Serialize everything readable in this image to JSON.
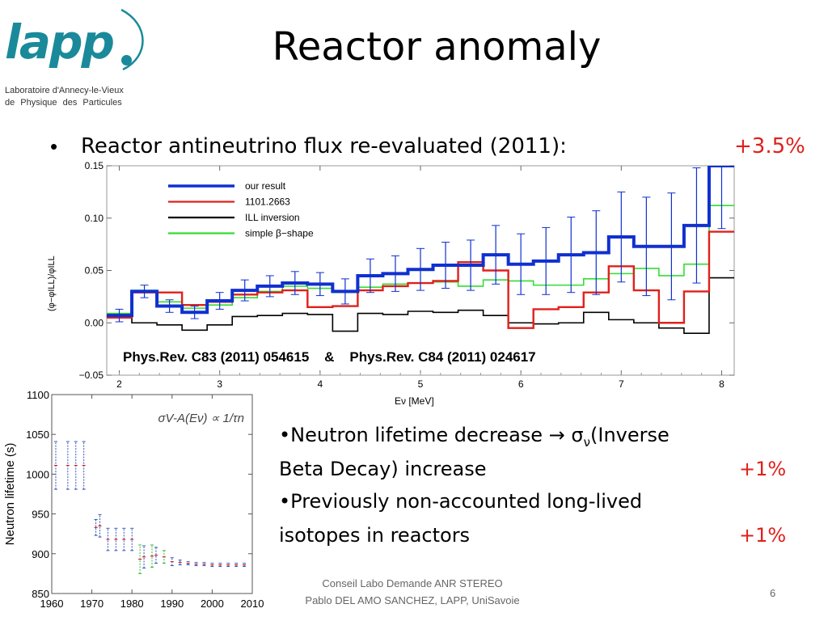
{
  "logo": {
    "word": "lapp",
    "line1": "Laboratoire d'Annecy-le-Vieux",
    "line2": "de Physique des Particules"
  },
  "title": "Reactor anomaly",
  "bullet1": {
    "marker": "•",
    "text": "Reactor antineutrino flux re-evaluated (2011):",
    "pct": "+3.5%"
  },
  "reference": "Phys.Rev. C83 (2011) 054615    &    Phys.Rev. C84 (2011) 024617",
  "bullet2": {
    "line1_pre": "•Neutron lifetime decrease → σ",
    "line1_sub": "ν",
    "line1_post": "(Inverse",
    "line2": "Beta Decay) increase",
    "pct": "+1%"
  },
  "bullet3": {
    "line1": "•Previously non-accounted long-lived",
    "line2": "isotopes in reactors",
    "pct": "+1%"
  },
  "footer": {
    "line1": "Conseil Labo Demande ANR STEREO",
    "line2": "Pablo DEL AMO SANCHEZ, LAPP, UniSavoie",
    "page": "6"
  },
  "colors": {
    "accent_red": "#e0201b",
    "logo_teal": "#1a8a9a",
    "our_result": "#1030d0",
    "ref_1101": "#e0201b",
    "ill": "#000000",
    "simple": "#33dd33"
  },
  "chart_data": [
    {
      "type": "line",
      "title": "",
      "xlabel": "Eν [MeV]",
      "ylabel": "(φ−φILL)/φILL",
      "xlim": [
        1.875,
        8.125
      ],
      "ylim": [
        -0.05,
        0.15
      ],
      "xticks": [
        "2",
        "3",
        "4",
        "5",
        "6",
        "7",
        "8"
      ],
      "yticks": [
        "−0.05",
        "0.00",
        "0.05",
        "0.10",
        "0.15"
      ],
      "legend_position": "top-left",
      "bin_edges": [
        1.875,
        2.125,
        2.375,
        2.625,
        2.875,
        3.125,
        3.375,
        3.625,
        3.875,
        4.125,
        4.375,
        4.625,
        4.875,
        5.125,
        5.375,
        5.625,
        5.875,
        6.125,
        6.375,
        6.625,
        6.875,
        7.125,
        7.375,
        7.625,
        7.875,
        8.125
      ],
      "series": [
        {
          "name": "our result",
          "color": "#1030d0",
          "values": [
            0.007,
            0.03,
            0.016,
            0.01,
            0.021,
            0.031,
            0.035,
            0.038,
            0.037,
            0.03,
            0.045,
            0.047,
            0.051,
            0.055,
            0.055,
            0.065,
            0.056,
            0.059,
            0.065,
            0.067,
            0.082,
            0.073,
            0.073,
            0.093,
            0.15
          ],
          "errors": [
            0.006,
            0.006,
            0.006,
            0.006,
            0.008,
            0.01,
            0.01,
            0.011,
            0.011,
            0.012,
            0.016,
            0.017,
            0.02,
            0.022,
            0.024,
            0.028,
            0.029,
            0.032,
            0.036,
            0.04,
            0.043,
            0.047,
            0.051,
            0.055,
            0.06
          ]
        },
        {
          "name": "1101.2663",
          "color": "#e0201b",
          "values": [
            0.005,
            0.029,
            0.029,
            0.017,
            0.02,
            0.027,
            0.029,
            0.031,
            0.015,
            0.016,
            0.031,
            0.035,
            0.038,
            0.04,
            0.058,
            0.05,
            -0.005,
            0.013,
            0.015,
            0.029,
            0.054,
            0.031,
            0.0,
            0.03,
            0.087
          ]
        },
        {
          "name": "ILL inversion",
          "color": "#000000",
          "values": [
            0.008,
            0.0,
            -0.002,
            -0.007,
            -0.002,
            0.006,
            0.007,
            0.009,
            0.008,
            -0.008,
            0.009,
            0.008,
            0.011,
            0.01,
            0.012,
            0.007,
            0.0,
            -0.001,
            0.0,
            0.01,
            0.003,
            0.0,
            -0.005,
            -0.01,
            0.043
          ]
        },
        {
          "name": "simple β−shape",
          "color": "#33dd33",
          "values": [
            0.009,
            0.031,
            0.02,
            0.014,
            0.017,
            0.024,
            0.03,
            0.035,
            0.033,
            0.029,
            0.034,
            0.037,
            0.038,
            0.039,
            0.035,
            0.041,
            0.04,
            0.036,
            0.036,
            0.042,
            0.047,
            0.052,
            0.045,
            0.056,
            0.112
          ]
        }
      ]
    },
    {
      "type": "scatter",
      "title": "",
      "annotation": "σV-A(Eν) ∝ 1/τn",
      "xlabel": "",
      "ylabel": "Neutron lifetime (s)",
      "xlim": [
        1960,
        2010
      ],
      "ylim": [
        850,
        1100
      ],
      "xticks": [
        "1960",
        "1970",
        "1980",
        "1990",
        "2000",
        "2010"
      ],
      "yticks": [
        "850",
        "900",
        "950",
        "1000",
        "1050",
        "1100"
      ],
      "points": [
        {
          "x": 1961,
          "y": 1011,
          "err": 30,
          "color": "#3355bb"
        },
        {
          "x": 1964,
          "y": 1011,
          "err": 30,
          "color": "#3355bb"
        },
        {
          "x": 1966,
          "y": 1011,
          "err": 30,
          "color": "#3355bb"
        },
        {
          "x": 1968,
          "y": 1011,
          "err": 30,
          "color": "#3355bb"
        },
        {
          "x": 1971,
          "y": 933,
          "err": 10,
          "color": "#3355bb"
        },
        {
          "x": 1972,
          "y": 935,
          "err": 14,
          "color": "#3355bb"
        },
        {
          "x": 1974,
          "y": 918,
          "err": 14,
          "color": "#3355bb"
        },
        {
          "x": 1976,
          "y": 918,
          "err": 14,
          "color": "#3355bb"
        },
        {
          "x": 1978,
          "y": 918,
          "err": 14,
          "color": "#3355bb"
        },
        {
          "x": 1980,
          "y": 918,
          "err": 14,
          "color": "#3355bb"
        },
        {
          "x": 1982,
          "y": 893,
          "err": 18,
          "color": "#33bb33"
        },
        {
          "x": 1983,
          "y": 896,
          "err": 14,
          "color": "#3355bb"
        },
        {
          "x": 1985,
          "y": 897,
          "err": 14,
          "color": "#33bb33"
        },
        {
          "x": 1986,
          "y": 898,
          "err": 10,
          "color": "#3355bb"
        },
        {
          "x": 1988,
          "y": 896,
          "err": 8,
          "color": "#33bb33"
        },
        {
          "x": 1990,
          "y": 890,
          "err": 5,
          "color": "#3355bb"
        },
        {
          "x": 1992,
          "y": 889,
          "err": 3,
          "color": "#3355bb"
        },
        {
          "x": 1994,
          "y": 888,
          "err": 2,
          "color": "#3355bb"
        },
        {
          "x": 1996,
          "y": 887,
          "err": 2,
          "color": "#3355bb"
        },
        {
          "x": 1998,
          "y": 887,
          "err": 2,
          "color": "#3355bb"
        },
        {
          "x": 2000,
          "y": 886,
          "err": 2,
          "color": "#3355bb"
        },
        {
          "x": 2002,
          "y": 886,
          "err": 2,
          "color": "#3355bb"
        },
        {
          "x": 2004,
          "y": 886,
          "err": 2,
          "color": "#3355bb"
        },
        {
          "x": 2006,
          "y": 886,
          "err": 2,
          "color": "#3355bb"
        },
        {
          "x": 2008,
          "y": 886,
          "err": 2,
          "color": "#3355bb"
        }
      ]
    }
  ]
}
